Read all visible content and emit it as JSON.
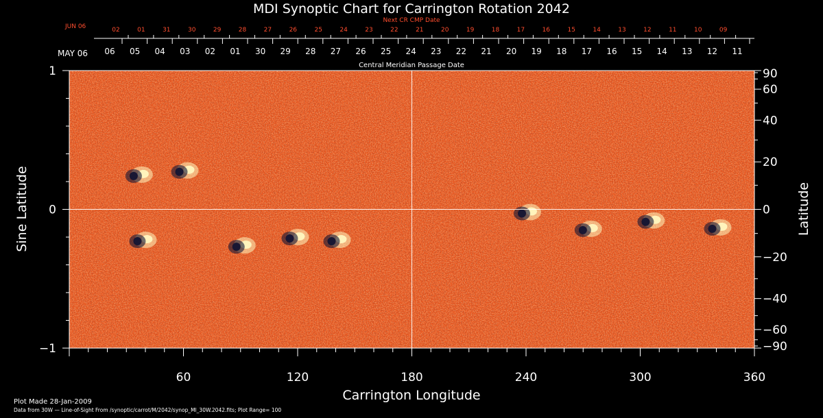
{
  "chart_data": {
    "type": "heatmap",
    "title": "MDI Synoptic Chart for Carrington Rotation 2042",
    "xlabel": "Carrington Longitude",
    "ylabel": "Sine Latitude",
    "y2label": "Latitude",
    "xlim": [
      0,
      360
    ],
    "ylim": [
      -1,
      1
    ],
    "x_ticks": [
      60,
      120,
      180,
      240,
      300,
      360
    ],
    "y_ticks": [
      -1,
      0,
      1
    ],
    "y_tick_labels": [
      "−1",
      "0",
      "1"
    ],
    "latitude_ticks": [
      90,
      60,
      40,
      20,
      0,
      -20,
      -40,
      -60,
      -90
    ],
    "latitude_tick_labels": [
      "90",
      "60",
      "40",
      "20",
      "0",
      "−20",
      "−40",
      "−60",
      "−90"
    ],
    "grid": "lines at longitude 180 and sine latitude 0",
    "cmp_axis": {
      "label": "Central Meridian Passage Date",
      "month_label": "MAY 06",
      "dates": [
        "06",
        "05",
        "04",
        "03",
        "02",
        "01",
        "30",
        "29",
        "28",
        "27",
        "26",
        "25",
        "24",
        "23",
        "22",
        "21",
        "20",
        "19",
        "18",
        "17",
        "16",
        "15",
        "14",
        "13",
        "12",
        "11"
      ]
    },
    "next_cmp_axis": {
      "label": "Next CR CMP Date",
      "month_label": "JUN 06",
      "dates": [
        "02",
        "01",
        "31",
        "30",
        "29",
        "28",
        "27",
        "26",
        "25",
        "24",
        "23",
        "22",
        "21",
        "20",
        "19",
        "18",
        "17",
        "16",
        "15",
        "14",
        "13",
        "12",
        "11",
        "10",
        "09"
      ]
    },
    "regions": [
      {
        "lon": 36,
        "sinlat": 0.25,
        "polarity": "bipolar"
      },
      {
        "lon": 60,
        "sinlat": 0.28,
        "polarity": "bipolar"
      },
      {
        "lon": 38,
        "sinlat": -0.22,
        "polarity": "bipolar"
      },
      {
        "lon": 90,
        "sinlat": -0.26,
        "polarity": "bipolar"
      },
      {
        "lon": 118,
        "sinlat": -0.2,
        "polarity": "bipolar"
      },
      {
        "lon": 140,
        "sinlat": -0.22,
        "polarity": "bipolar"
      },
      {
        "lon": 240,
        "sinlat": -0.02,
        "polarity": "bipolar"
      },
      {
        "lon": 272,
        "sinlat": -0.14,
        "polarity": "bipolar"
      },
      {
        "lon": 305,
        "sinlat": -0.08,
        "polarity": "bipolar"
      },
      {
        "lon": 340,
        "sinlat": -0.13,
        "polarity": "bipolar"
      }
    ],
    "colors": {
      "background_field": "#e8531c",
      "positive_polarity": "#fff7c0",
      "negative_polarity": "#141432",
      "axes": "#ffffff",
      "date_axis_red": "#ff4d2e"
    }
  },
  "footer": {
    "plot_made": "Plot Made 28-Jan-2009",
    "data_from": "Data from 30W — Line-of-Sight From /synoptic/carrot/M/2042/synop_Ml_30W.2042.fits; Plot Range= 100"
  }
}
